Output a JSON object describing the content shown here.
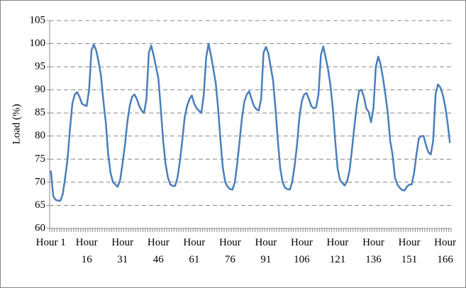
{
  "chart_data": {
    "type": "line",
    "y_label": "Load (%)",
    "categories": [
      "Hour 1",
      null,
      null,
      null,
      null,
      null,
      null,
      null,
      null,
      null,
      null,
      null,
      null,
      null,
      null,
      "Hour 16",
      null,
      null,
      null,
      null,
      null,
      null,
      null,
      null,
      null,
      null,
      null,
      null,
      null,
      null,
      "Hour 31",
      null,
      null,
      null,
      null,
      null,
      null,
      null,
      null,
      null,
      null,
      null,
      null,
      null,
      null,
      "Hour 46",
      null,
      null,
      null,
      null,
      null,
      null,
      null,
      null,
      null,
      null,
      null,
      null,
      null,
      null,
      "Hour 61",
      null,
      null,
      null,
      null,
      null,
      null,
      null,
      null,
      null,
      null,
      null,
      null,
      null,
      null,
      "Hour 76",
      null,
      null,
      null,
      null,
      null,
      null,
      null,
      null,
      null,
      null,
      null,
      null,
      null,
      null,
      "Hour 91",
      null,
      null,
      null,
      null,
      null,
      null,
      null,
      null,
      null,
      null,
      null,
      null,
      null,
      null,
      "Hour 106",
      null,
      null,
      null,
      null,
      null,
      null,
      null,
      null,
      null,
      null,
      null,
      null,
      null,
      null,
      "Hour 121",
      null,
      null,
      null,
      null,
      null,
      null,
      null,
      null,
      null,
      null,
      null,
      null,
      null,
      null,
      "Hour 136",
      null,
      null,
      null,
      null,
      null,
      null,
      null,
      null,
      null,
      null,
      null,
      null,
      null,
      null,
      "Hour 151",
      null,
      null,
      null,
      null,
      null,
      null,
      null,
      null,
      null,
      null,
      null,
      null,
      null,
      null,
      "Hour 166",
      null,
      null
    ],
    "values": [
      72.5,
      67,
      66.2,
      66,
      66,
      67.5,
      71,
      75,
      81.5,
      87,
      89,
      89.5,
      88.5,
      87,
      86.7,
      86.5,
      90,
      98.5,
      99.8,
      98.5,
      96,
      93,
      87.5,
      83,
      76,
      72,
      70,
      69.5,
      69,
      70.5,
      74,
      78,
      83,
      86.5,
      88.5,
      89,
      88,
      86.5,
      85.5,
      85,
      88,
      98,
      99.6,
      97.5,
      95,
      92.5,
      86,
      79,
      74,
      71,
      69.5,
      69.2,
      69.2,
      71,
      74.5,
      79,
      84,
      86.5,
      88,
      88.8,
      87,
      86,
      85.5,
      85,
      89,
      97,
      100,
      97.5,
      94.5,
      91.5,
      86,
      79,
      73,
      70,
      69,
      68.5,
      68.4,
      70,
      74,
      79,
      84,
      87.5,
      89,
      89.7,
      88,
      86.5,
      85.8,
      85.5,
      88,
      98,
      99.3,
      98,
      95,
      92,
      86,
      79,
      73,
      70,
      68.8,
      68.5,
      68.4,
      70,
      73.5,
      78,
      84,
      87.5,
      89,
      89.3,
      88,
      86.5,
      86,
      86.2,
      89,
      97.5,
      99.4,
      97,
      94.5,
      91,
      86,
      79,
      73,
      70.5,
      69.8,
      69.3,
      70.3,
      72.5,
      77,
      82,
      86.5,
      89.8,
      90,
      88.5,
      86,
      85.2,
      83,
      86,
      95,
      97.2,
      95.5,
      92.5,
      89,
      85,
      79,
      76,
      71,
      69.5,
      68.8,
      68.3,
      68.2,
      69,
      69.5,
      69.5,
      72,
      76,
      79.5,
      80,
      80,
      78,
      76.5,
      76,
      79,
      89,
      91.2,
      90.5,
      89,
      86.5,
      83,
      78.5
    ],
    "color": "#4a7ebb",
    "ylim": [
      60,
      105
    ],
    "yticks": [
      60,
      65,
      70,
      75,
      80,
      85,
      90,
      95,
      100,
      105
    ],
    "grid": true
  }
}
